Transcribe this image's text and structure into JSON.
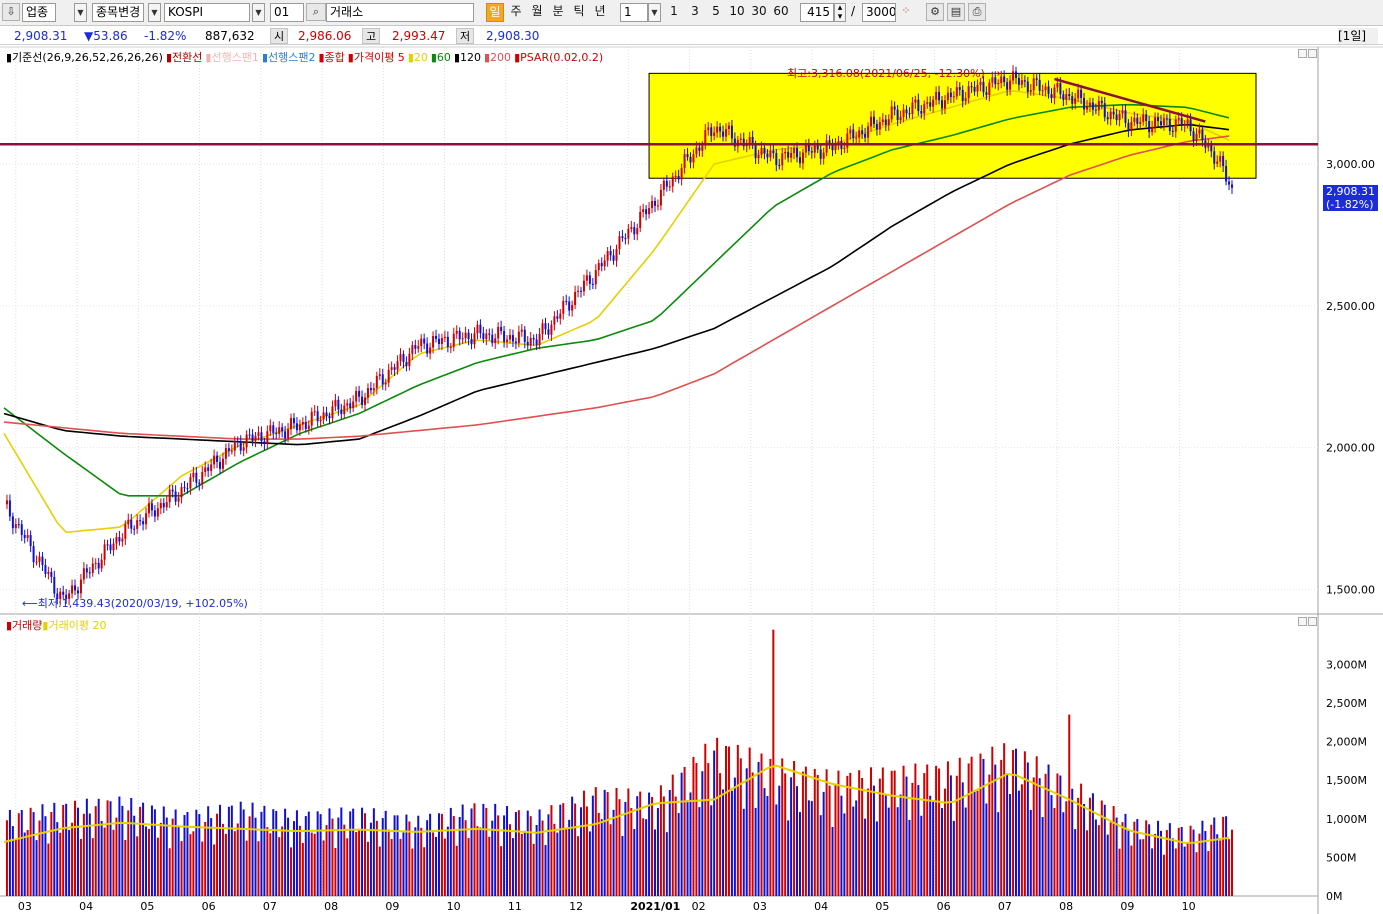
{
  "toolbar": {
    "category": "업종",
    "code_change": "종목변경",
    "index_name": "KOSPI",
    "index_code": "01",
    "exchange": "거래소",
    "periods": [
      "일",
      "주",
      "월",
      "분",
      "틱",
      "년"
    ],
    "interval_value": "1",
    "quick_intervals": [
      "1",
      "3",
      "5",
      "10",
      "30",
      "60"
    ],
    "visible_bars": "415",
    "separator": "/",
    "total_bars": "3000"
  },
  "infobar": {
    "last_price": "2,908.31",
    "change": "▼53.86",
    "change_pct": "-1.82%",
    "volume": "887,632",
    "open_label": "시",
    "open": "2,986.06",
    "high_label": "고",
    "high": "2,993.47",
    "low_label": "저",
    "low": "2,908.30",
    "period_badge": "[1일]"
  },
  "price_legend": [
    {
      "text": "▮기준선(26,9,26,52,26,26,26)",
      "color": "#000000"
    },
    {
      "text": "▮전환선",
      "color": "#b00000"
    },
    {
      "text": "▮선행스팬1",
      "color": "#f4b3b3"
    },
    {
      "text": "▮선행스팬2",
      "color": "#2a7fd0"
    },
    {
      "text": "▮종합",
      "color": "#d00000"
    },
    {
      "text": "▮가격이평 5",
      "color": "#d00000"
    },
    {
      "text": "▮20",
      "color": "#e8d000"
    },
    {
      "text": "▮60",
      "color": "#0a8a0a"
    },
    {
      "text": "▮120",
      "color": "#000000"
    },
    {
      "text": "▮200",
      "color": "#e05050"
    },
    {
      "text": "▮PSAR(0.02,0.2)",
      "color": "#d00000"
    }
  ],
  "volume_legend": [
    {
      "text": "▮거래량",
      "color": "#d00000"
    },
    {
      "text": "▮거래이평 20",
      "color": "#e8d000"
    }
  ],
  "annotations": {
    "high": "최고:3,316.08(2021/06/25, -12.30%)",
    "high_arrow": "⟶",
    "low": "최저:1,439.43(2020/03/19, +102.05%)",
    "low_arrow": "⟵"
  },
  "current_price_box": {
    "price": "2,908.31",
    "pct": "(-1.82%)"
  },
  "chart_data": [
    {
      "type": "candlestick",
      "title": "KOSPI",
      "price_axis_ticks": [
        "3,000.00",
        "2,500.00",
        "2,000.00",
        "1,500.00"
      ],
      "price_tick_values": [
        3000,
        2500,
        2000,
        1500
      ],
      "ylim": [
        1420,
        3360
      ],
      "x_tick_labels": [
        "03",
        "04",
        "05",
        "06",
        "07",
        "08",
        "09",
        "10",
        "11",
        "12",
        "2021/01",
        "02",
        "03",
        "04",
        "05",
        "06",
        "07",
        "08",
        "09",
        "10"
      ],
      "series": [
        {
          "name": "종합",
          "color": "#d00000",
          "x": [
            0,
            20,
            40,
            60,
            80,
            100,
            120,
            140,
            160,
            180,
            200,
            220,
            240,
            260,
            280,
            300,
            320,
            340,
            360,
            380,
            400,
            410,
            415
          ],
          "values": [
            1800,
            1460,
            1700,
            1850,
            2020,
            2080,
            2170,
            2360,
            2400,
            2380,
            2620,
            2870,
            3130,
            3020,
            3060,
            3170,
            3240,
            3300,
            3240,
            3150,
            3140,
            3020,
            2908
          ]
        },
        {
          "name": "20",
          "color": "#e8d000",
          "x": [
            0,
            20,
            40,
            60,
            80,
            100,
            120,
            140,
            160,
            180,
            200,
            220,
            240,
            260,
            280,
            300,
            320,
            340,
            360,
            380,
            400,
            415
          ],
          "values": [
            2050,
            1700,
            1720,
            1900,
            2010,
            2080,
            2150,
            2330,
            2380,
            2360,
            2450,
            2700,
            3000,
            3050,
            3070,
            3140,
            3200,
            3260,
            3230,
            3180,
            3150,
            3080
          ]
        },
        {
          "name": "60",
          "color": "#0a8a0a",
          "x": [
            0,
            20,
            40,
            60,
            80,
            100,
            120,
            140,
            160,
            180,
            200,
            220,
            240,
            260,
            280,
            300,
            320,
            340,
            360,
            380,
            400,
            415
          ],
          "values": [
            2140,
            1980,
            1830,
            1830,
            1950,
            2050,
            2120,
            2220,
            2300,
            2350,
            2380,
            2450,
            2650,
            2850,
            2970,
            3050,
            3100,
            3160,
            3200,
            3210,
            3200,
            3160
          ]
        },
        {
          "name": "120",
          "color": "#000000",
          "x": [
            0,
            20,
            40,
            60,
            80,
            100,
            120,
            140,
            160,
            180,
            200,
            220,
            240,
            260,
            280,
            300,
            320,
            340,
            360,
            380,
            400,
            415
          ],
          "values": [
            2120,
            2060,
            2040,
            2030,
            2020,
            2010,
            2030,
            2110,
            2200,
            2250,
            2300,
            2350,
            2420,
            2530,
            2640,
            2780,
            2900,
            3000,
            3070,
            3120,
            3140,
            3120
          ]
        },
        {
          "name": "200",
          "color": "#e05050",
          "x": [
            0,
            20,
            40,
            60,
            80,
            100,
            120,
            140,
            160,
            180,
            200,
            220,
            240,
            260,
            280,
            300,
            320,
            340,
            360,
            380,
            400,
            415
          ],
          "values": [
            2090,
            2070,
            2050,
            2040,
            2030,
            2030,
            2040,
            2060,
            2080,
            2110,
            2140,
            2180,
            2260,
            2380,
            2500,
            2620,
            2740,
            2860,
            2960,
            3030,
            3080,
            3100
          ]
        }
      ],
      "horizontal_line": 3070,
      "highlight_band": {
        "x": [
          218,
          415
        ],
        "y": [
          2950,
          3320
        ]
      }
    },
    {
      "type": "bar",
      "title": "거래량",
      "volume_axis_ticks": [
        "3,000M",
        "2,500M",
        "2,000M",
        "1,500M",
        "1,000M",
        "500M",
        "0M"
      ],
      "volume_tick_values": [
        3000,
        2500,
        2000,
        1500,
        1000,
        500,
        0
      ],
      "ylim": [
        0,
        3420
      ],
      "series": [
        {
          "name": "거래량",
          "x": [
            0,
            20,
            40,
            60,
            80,
            100,
            120,
            140,
            160,
            180,
            200,
            220,
            240,
            260,
            280,
            300,
            320,
            340,
            360,
            380,
            400,
            415
          ],
          "values": [
            850,
            950,
            1000,
            850,
            950,
            850,
            900,
            800,
            950,
            850,
            1100,
            1050,
            1600,
            1400,
            1250,
            1300,
            1350,
            1550,
            1200,
            800,
            700,
            850
          ]
        },
        {
          "name": "거래이평 20",
          "x": [
            0,
            20,
            40,
            60,
            80,
            100,
            120,
            140,
            160,
            180,
            200,
            220,
            240,
            260,
            280,
            300,
            320,
            340,
            360,
            380,
            400,
            415
          ],
          "values": [
            700,
            880,
            950,
            900,
            870,
            840,
            860,
            830,
            870,
            820,
            930,
            1200,
            1250,
            1700,
            1450,
            1300,
            1200,
            1600,
            1250,
            850,
            680,
            760
          ]
        }
      ],
      "peaks": [
        {
          "x": 260,
          "value": 3450
        },
        {
          "x": 360,
          "value": 2350
        }
      ]
    }
  ],
  "colors": {
    "up": "#d00000",
    "down": "#1010d0",
    "highlight": "#ffff00",
    "resistance": "#8a1040"
  }
}
